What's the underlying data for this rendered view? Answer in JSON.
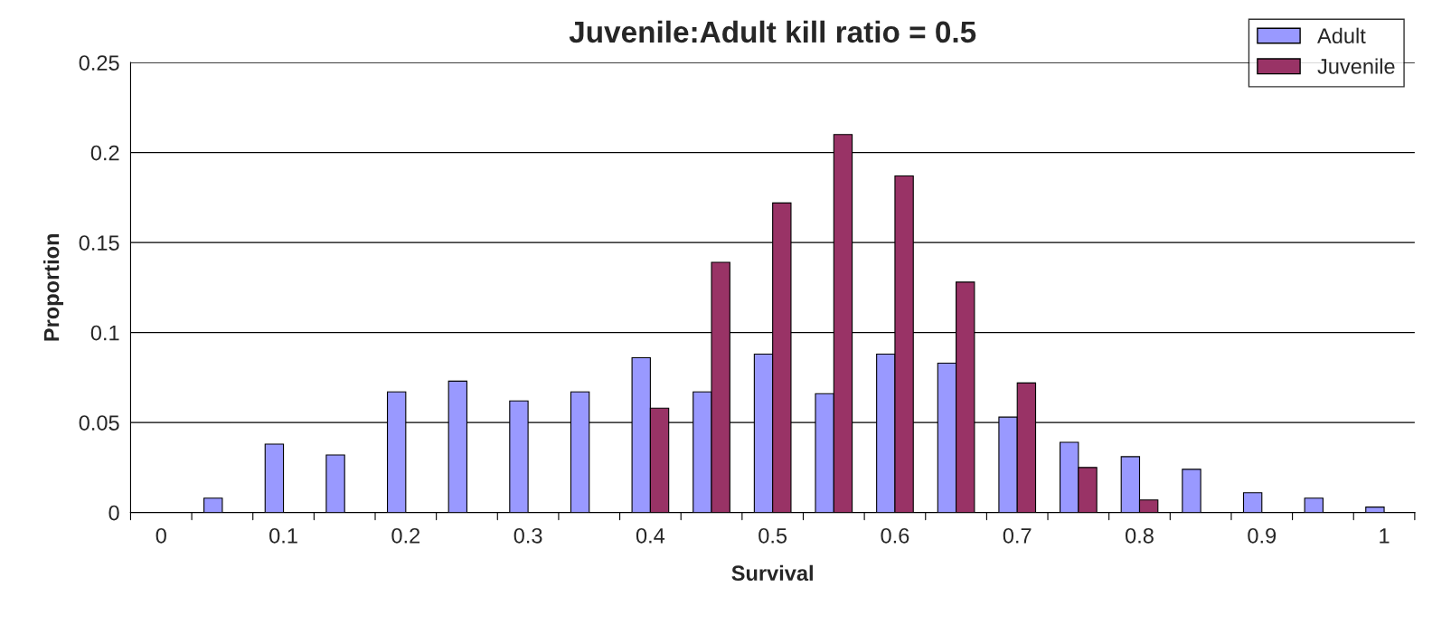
{
  "chart_data": {
    "type": "bar",
    "title": "Juvenile:Adult kill ratio = 0.5",
    "xlabel": "Survival",
    "ylabel": "Proportion",
    "categories": [
      "0",
      null,
      "0.1",
      null,
      "0.2",
      null,
      "0.3",
      null,
      "0.4",
      null,
      "0.5",
      null,
      "0.6",
      null,
      "0.7",
      null,
      "0.8",
      null,
      "0.9",
      null,
      "1"
    ],
    "series": [
      {
        "name": "Adult",
        "color": "#9999ff",
        "values": [
          null,
          0.008,
          0.038,
          0.032,
          0.067,
          0.073,
          0.062,
          0.067,
          0.086,
          0.067,
          0.088,
          0.066,
          0.088,
          0.083,
          0.053,
          0.039,
          0.031,
          0.024,
          0.011,
          0.008,
          0.003
        ]
      },
      {
        "name": "Juvenile",
        "color": "#993366",
        "values": [
          null,
          null,
          null,
          null,
          null,
          null,
          null,
          null,
          0.058,
          0.139,
          0.172,
          0.21,
          0.187,
          0.128,
          0.072,
          0.025,
          0.007,
          null,
          null,
          null,
          null
        ]
      }
    ],
    "ylim": [
      0,
      0.25
    ],
    "yticks": [
      0,
      0.05,
      0.1,
      0.15,
      0.2,
      0.25
    ],
    "grid": "y",
    "legend": "top right"
  }
}
